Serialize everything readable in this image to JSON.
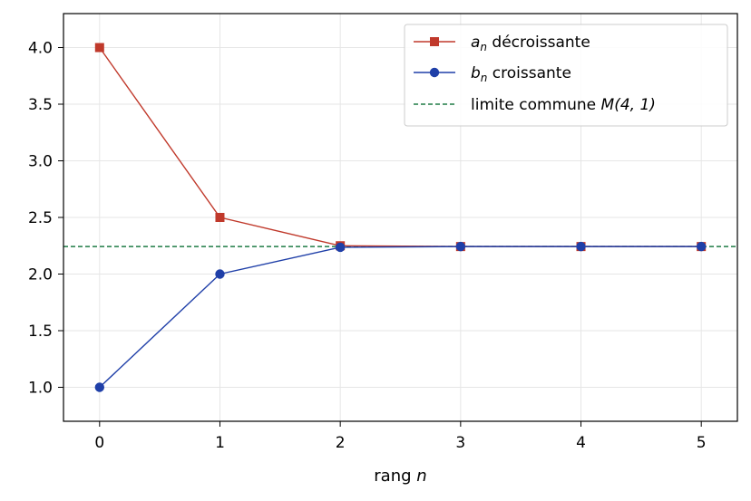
{
  "chart_data": {
    "type": "line",
    "x": [
      0,
      1,
      2,
      3,
      4,
      5
    ],
    "xlabel": {
      "text": "rang ",
      "var": "n"
    },
    "xlim": [
      -0.3,
      5.3
    ],
    "ylim": [
      0.7,
      4.3
    ],
    "xticks": [
      0,
      1,
      2,
      3,
      4,
      5
    ],
    "yticks": [
      1.0,
      1.5,
      2.0,
      2.5,
      3.0,
      3.5,
      4.0
    ],
    "ytick_labels": [
      "1.0",
      "1.5",
      "2.0",
      "2.5",
      "3.0",
      "3.5",
      "4.0"
    ],
    "grid": true,
    "legend_position": "top-right",
    "series": [
      {
        "name": "a_n décroissante",
        "label_var": "a",
        "label_sub": "n",
        "label_text": " décroissante",
        "color": "#c0392b",
        "marker": "square",
        "values": [
          4.0,
          2.5,
          2.25,
          2.243,
          2.243,
          2.243
        ]
      },
      {
        "name": "b_n croissante",
        "label_var": "b",
        "label_sub": "n",
        "label_text": " croissante",
        "color": "#1f3fa8",
        "marker": "circle",
        "values": [
          1.0,
          2.0,
          2.2361,
          2.243,
          2.243,
          2.243
        ]
      }
    ],
    "reference_line": {
      "label_text": "limite commune ",
      "label_math": "M(4, 1)",
      "color": "#1e7b45",
      "style": "dashed",
      "value": 2.243
    }
  }
}
